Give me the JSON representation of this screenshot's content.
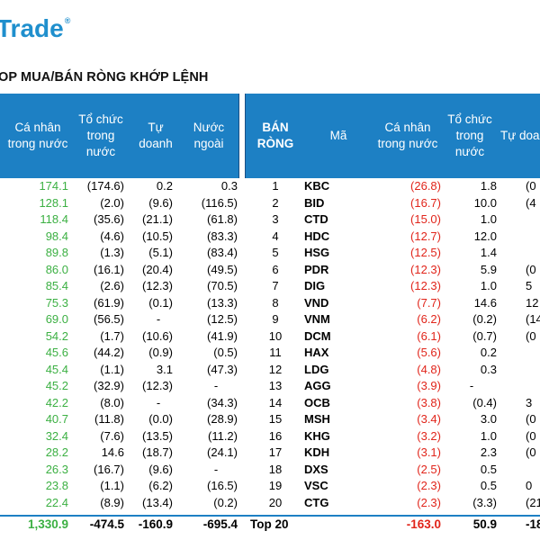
{
  "brand": {
    "logo_text": "Trade",
    "logo_mark": "®",
    "color": "#1f8fcd"
  },
  "title": "OP MUA/BÁN RÒNG KHỚP LỆNH",
  "colors": {
    "header_bg": "#1d80c4",
    "positive": "#3cb043",
    "negative": "#e1251b"
  },
  "left_table": {
    "headers": [
      "Cá nhân trong nước",
      "Tổ chức trong nước",
      "Tự doanh",
      "Nước ngoài"
    ],
    "rows": [
      [
        "174.1",
        "(174.6)",
        "0.2",
        "0.3"
      ],
      [
        "128.1",
        "(2.0)",
        "(9.6)",
        "(116.5)"
      ],
      [
        "118.4",
        "(35.6)",
        "(21.1)",
        "(61.8)"
      ],
      [
        "98.4",
        "(4.6)",
        "(10.5)",
        "(83.3)"
      ],
      [
        "89.8",
        "(1.3)",
        "(5.1)",
        "(83.4)"
      ],
      [
        "86.0",
        "(16.1)",
        "(20.4)",
        "(49.5)"
      ],
      [
        "85.4",
        "(2.6)",
        "(12.3)",
        "(70.5)"
      ],
      [
        "75.3",
        "(61.9)",
        "(0.1)",
        "(13.3)"
      ],
      [
        "69.0",
        "(56.5)",
        "-",
        "(12.5)"
      ],
      [
        "54.2",
        "(1.7)",
        "(10.6)",
        "(41.9)"
      ],
      [
        "45.6",
        "(44.2)",
        "(0.9)",
        "(0.5)"
      ],
      [
        "45.4",
        "(1.1)",
        "3.1",
        "(47.3)"
      ],
      [
        "45.2",
        "(32.9)",
        "(12.3)",
        "-"
      ],
      [
        "42.2",
        "(8.0)",
        "-",
        "(34.3)"
      ],
      [
        "40.7",
        "(11.8)",
        "(0.0)",
        "(28.9)"
      ],
      [
        "32.4",
        "(7.6)",
        "(13.5)",
        "(11.2)"
      ],
      [
        "28.2",
        "14.6",
        "(18.7)",
        "(24.1)"
      ],
      [
        "26.3",
        "(16.7)",
        "(9.6)",
        "-"
      ],
      [
        "23.8",
        "(1.1)",
        "(6.2)",
        "(16.5)"
      ],
      [
        "22.4",
        "(8.9)",
        "(13.4)",
        "(0.2)"
      ]
    ],
    "total": [
      "1,330.9",
      "-474.5",
      "-160.9",
      "-695.4"
    ]
  },
  "right_table": {
    "headers": [
      "BÁN RÒNG",
      "Mã",
      "Cá nhân trong nước",
      "Tổ chức trong nước",
      "Tự doa"
    ],
    "rows": [
      [
        "1",
        "KBC",
        "(26.8)",
        "1.8",
        "(0"
      ],
      [
        "2",
        "BID",
        "(16.7)",
        "10.0",
        "(4"
      ],
      [
        "3",
        "CTD",
        "(15.0)",
        "1.0",
        ""
      ],
      [
        "4",
        "HDC",
        "(12.7)",
        "12.0",
        ""
      ],
      [
        "5",
        "HSG",
        "(12.5)",
        "1.4",
        ""
      ],
      [
        "6",
        "PDR",
        "(12.3)",
        "5.9",
        "(0"
      ],
      [
        "7",
        "DIG",
        "(12.3)",
        "1.0",
        "5"
      ],
      [
        "8",
        "VND",
        "(7.7)",
        "14.6",
        "12"
      ],
      [
        "9",
        "VNM",
        "(6.2)",
        "(0.2)",
        "(14"
      ],
      [
        "10",
        "DCM",
        "(6.1)",
        "(0.7)",
        "(0"
      ],
      [
        "11",
        "HAX",
        "(5.6)",
        "0.2",
        ""
      ],
      [
        "12",
        "LDG",
        "(4.8)",
        "0.3",
        ""
      ],
      [
        "13",
        "AGG",
        "(3.9)",
        "-",
        ""
      ],
      [
        "14",
        "OCB",
        "(3.8)",
        "(0.4)",
        "3"
      ],
      [
        "15",
        "MSH",
        "(3.4)",
        "3.0",
        "(0"
      ],
      [
        "16",
        "KHG",
        "(3.2)",
        "1.0",
        "(0"
      ],
      [
        "17",
        "KDH",
        "(3.1)",
        "2.3",
        "(0"
      ],
      [
        "18",
        "DXS",
        "(2.5)",
        "0.5",
        ""
      ],
      [
        "19",
        "VSC",
        "(2.3)",
        "0.5",
        "0"
      ],
      [
        "20",
        "CTG",
        "(2.3)",
        "(3.3)",
        "(21"
      ]
    ],
    "total": [
      "Top 20",
      "",
      "-163.0",
      "50.9",
      "-18"
    ]
  }
}
